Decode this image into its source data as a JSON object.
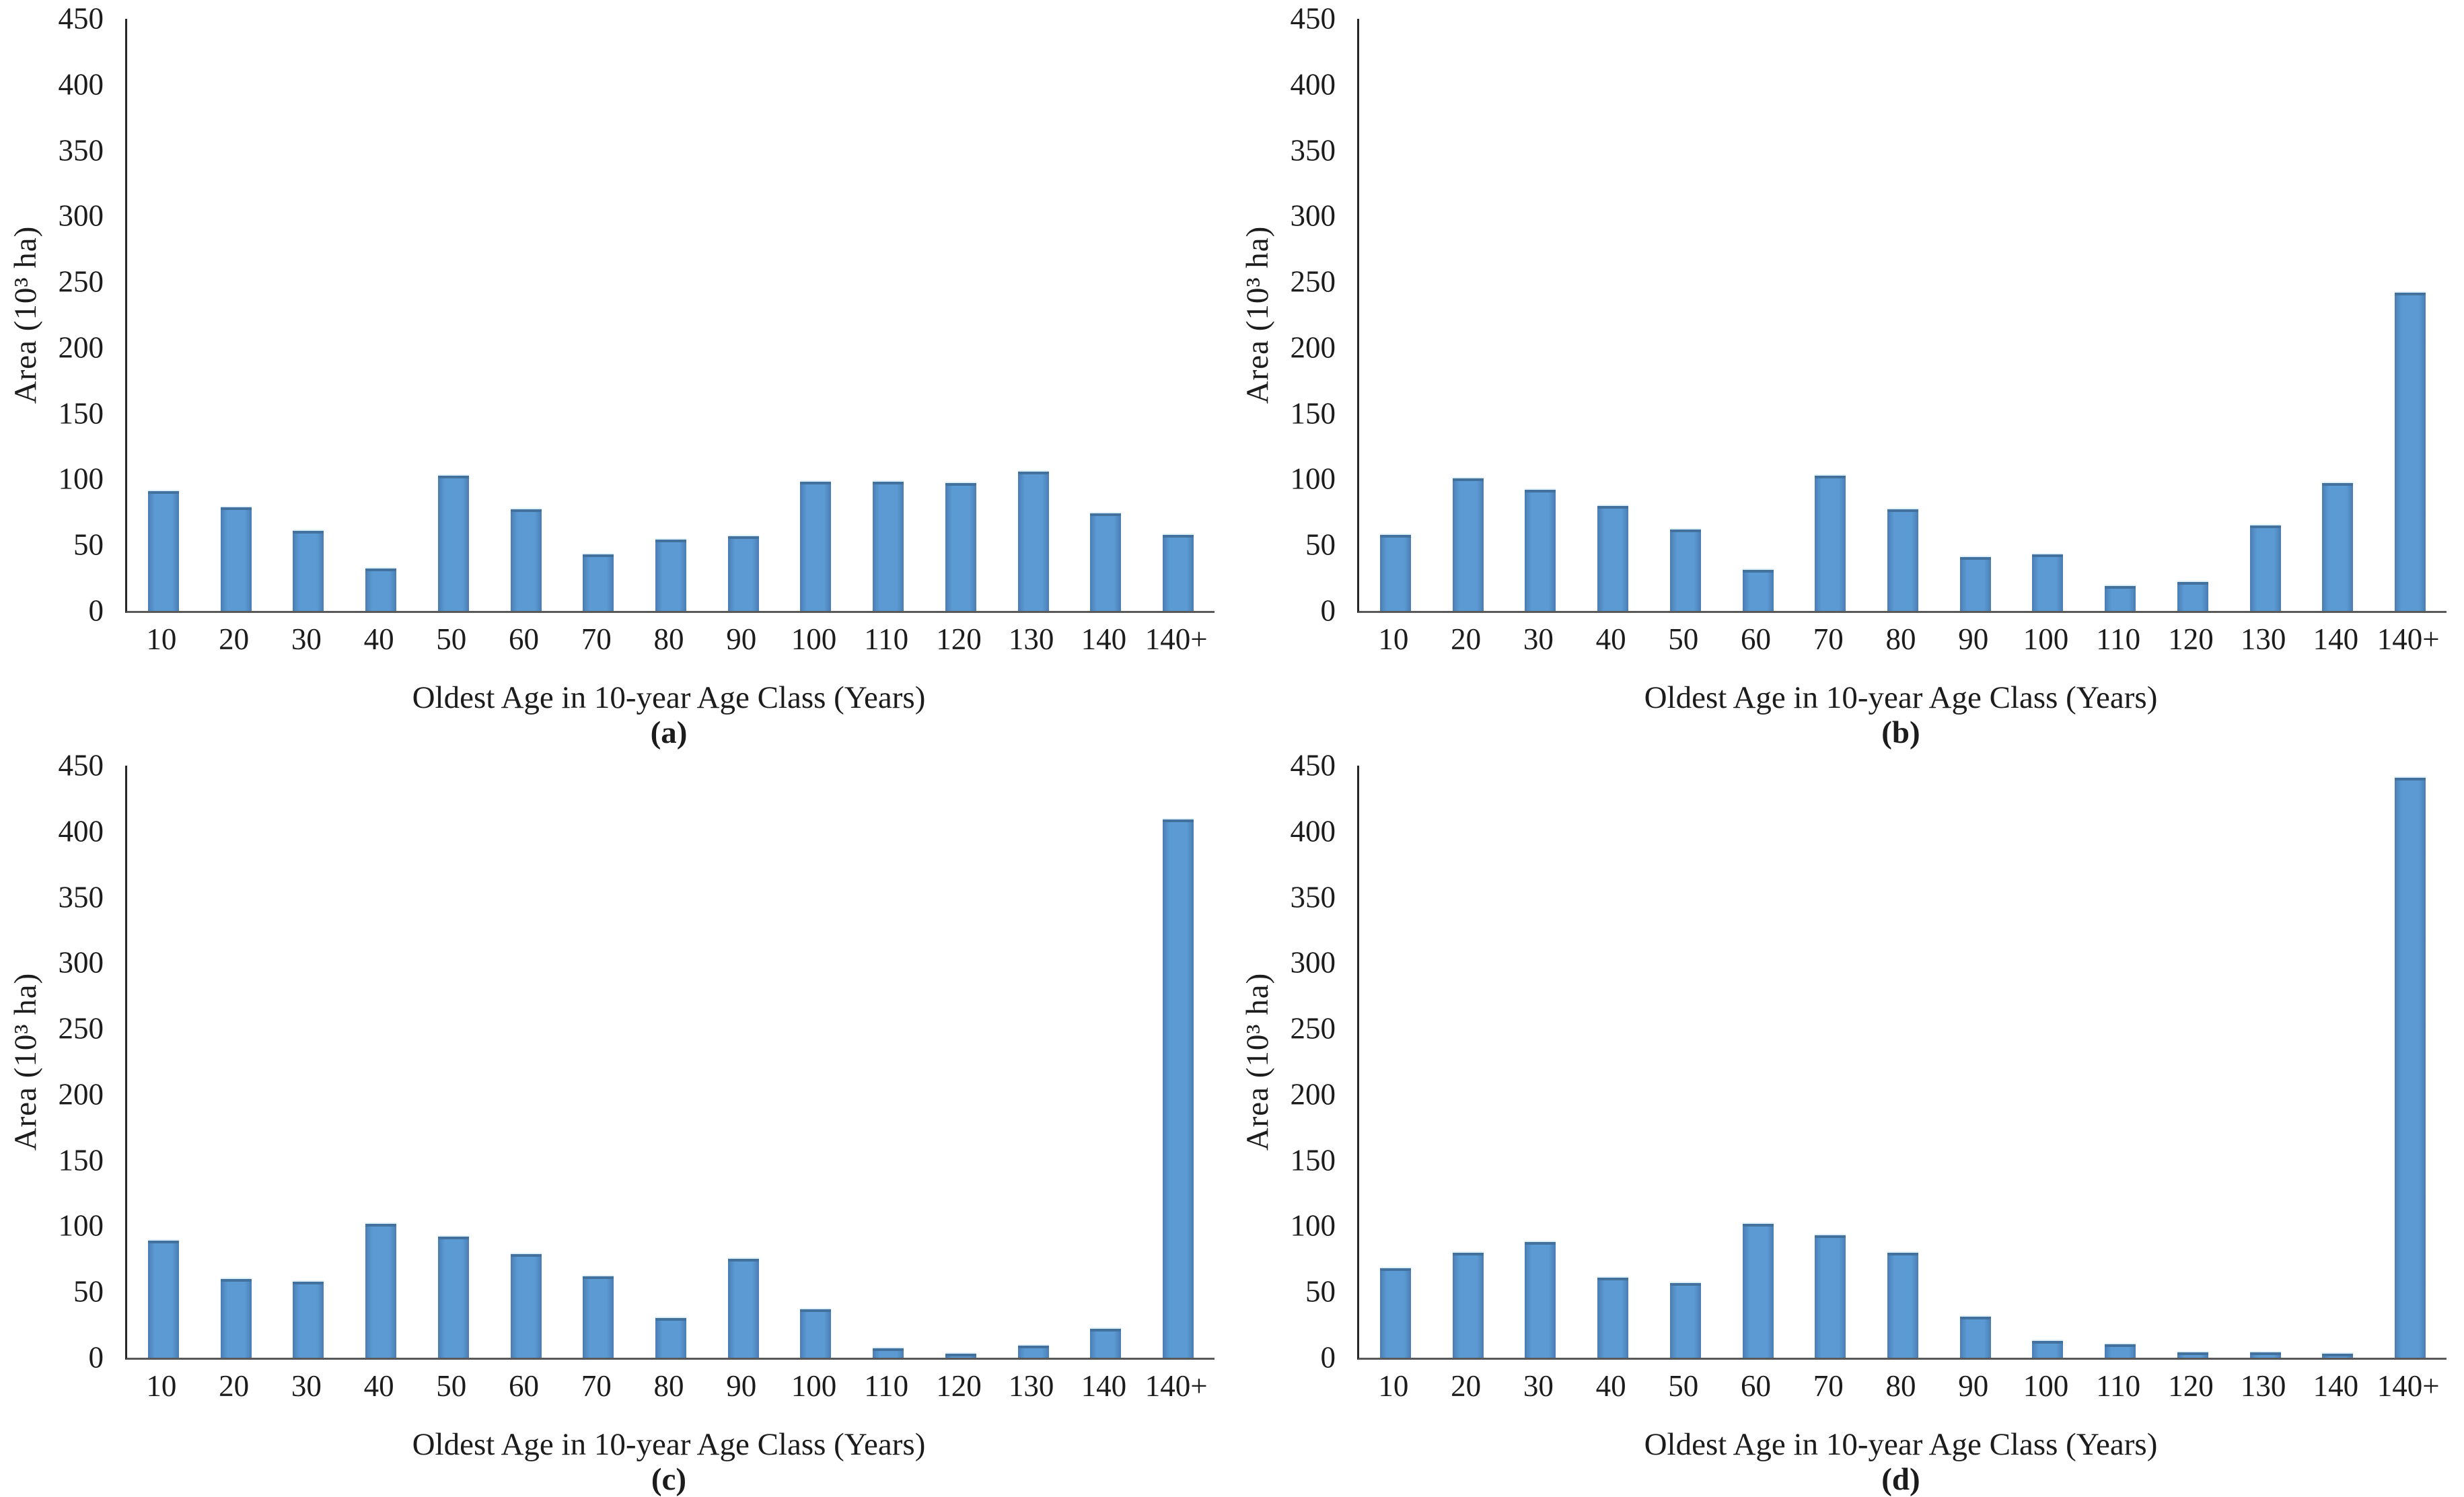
{
  "figure": {
    "colors": {
      "bar_fill": "#5b9ad3",
      "bar_edge_dark": "#4a7db3",
      "bar_border": "#41719c",
      "y_axis_line": "#262626",
      "x_axis_line": "#595959",
      "text": "#1c1c1c"
    }
  },
  "chart_data": [
    {
      "type": "bar",
      "panel": "(a)",
      "title": "",
      "xlabel": "Oldest Age in 10-year Age Class (Years)",
      "ylabel": "Area (10³ ha)",
      "categories": [
        "10",
        "20",
        "30",
        "40",
        "50",
        "60",
        "70",
        "80",
        "90",
        "100",
        "110",
        "120",
        "130",
        "140",
        "140+"
      ],
      "values": [
        91,
        79,
        61,
        32,
        103,
        77,
        43,
        54,
        57,
        98,
        98,
        97,
        106,
        74,
        58
      ],
      "ylim": [
        0,
        450
      ],
      "ytick_step": 50,
      "grid": "off",
      "legend": "none"
    },
    {
      "type": "bar",
      "panel": "(b)",
      "title": "",
      "xlabel": "Oldest Age in 10-year Age Class (Years)",
      "ylabel": "Area (10³ ha)",
      "categories": [
        "10",
        "20",
        "30",
        "40",
        "50",
        "60",
        "70",
        "80",
        "90",
        "100",
        "110",
        "120",
        "130",
        "140",
        "140+"
      ],
      "values": [
        58,
        101,
        92,
        80,
        62,
        31,
        103,
        77,
        41,
        43,
        19,
        22,
        65,
        97,
        242
      ],
      "ylim": [
        0,
        450
      ],
      "ytick_step": 50,
      "grid": "off",
      "legend": "none"
    },
    {
      "type": "bar",
      "panel": "(c)",
      "title": "",
      "xlabel": "Oldest Age in 10-year Age Class (Years)",
      "ylabel": "Area (10³ ha)",
      "categories": [
        "10",
        "20",
        "30",
        "40",
        "50",
        "60",
        "70",
        "80",
        "90",
        "100",
        "110",
        "120",
        "130",
        "140",
        "140+"
      ],
      "values": [
        89,
        60,
        58,
        102,
        92,
        79,
        62,
        30,
        75,
        37,
        7,
        3,
        9,
        22,
        409
      ],
      "ylim": [
        0,
        450
      ],
      "ytick_step": 50,
      "grid": "off",
      "legend": "none"
    },
    {
      "type": "bar",
      "panel": "(d)",
      "title": "",
      "xlabel": "Oldest Age in 10-year Age Class (Years)",
      "ylabel": "Area (10³ ha)",
      "categories": [
        "10",
        "20",
        "30",
        "40",
        "50",
        "60",
        "70",
        "80",
        "90",
        "100",
        "110",
        "120",
        "130",
        "140",
        "140+"
      ],
      "values": [
        68,
        80,
        88,
        61,
        57,
        102,
        93,
        80,
        31,
        13,
        10,
        4,
        4,
        3,
        441
      ],
      "ylim": [
        0,
        450
      ],
      "ytick_step": 50,
      "grid": "off",
      "legend": "none"
    }
  ]
}
